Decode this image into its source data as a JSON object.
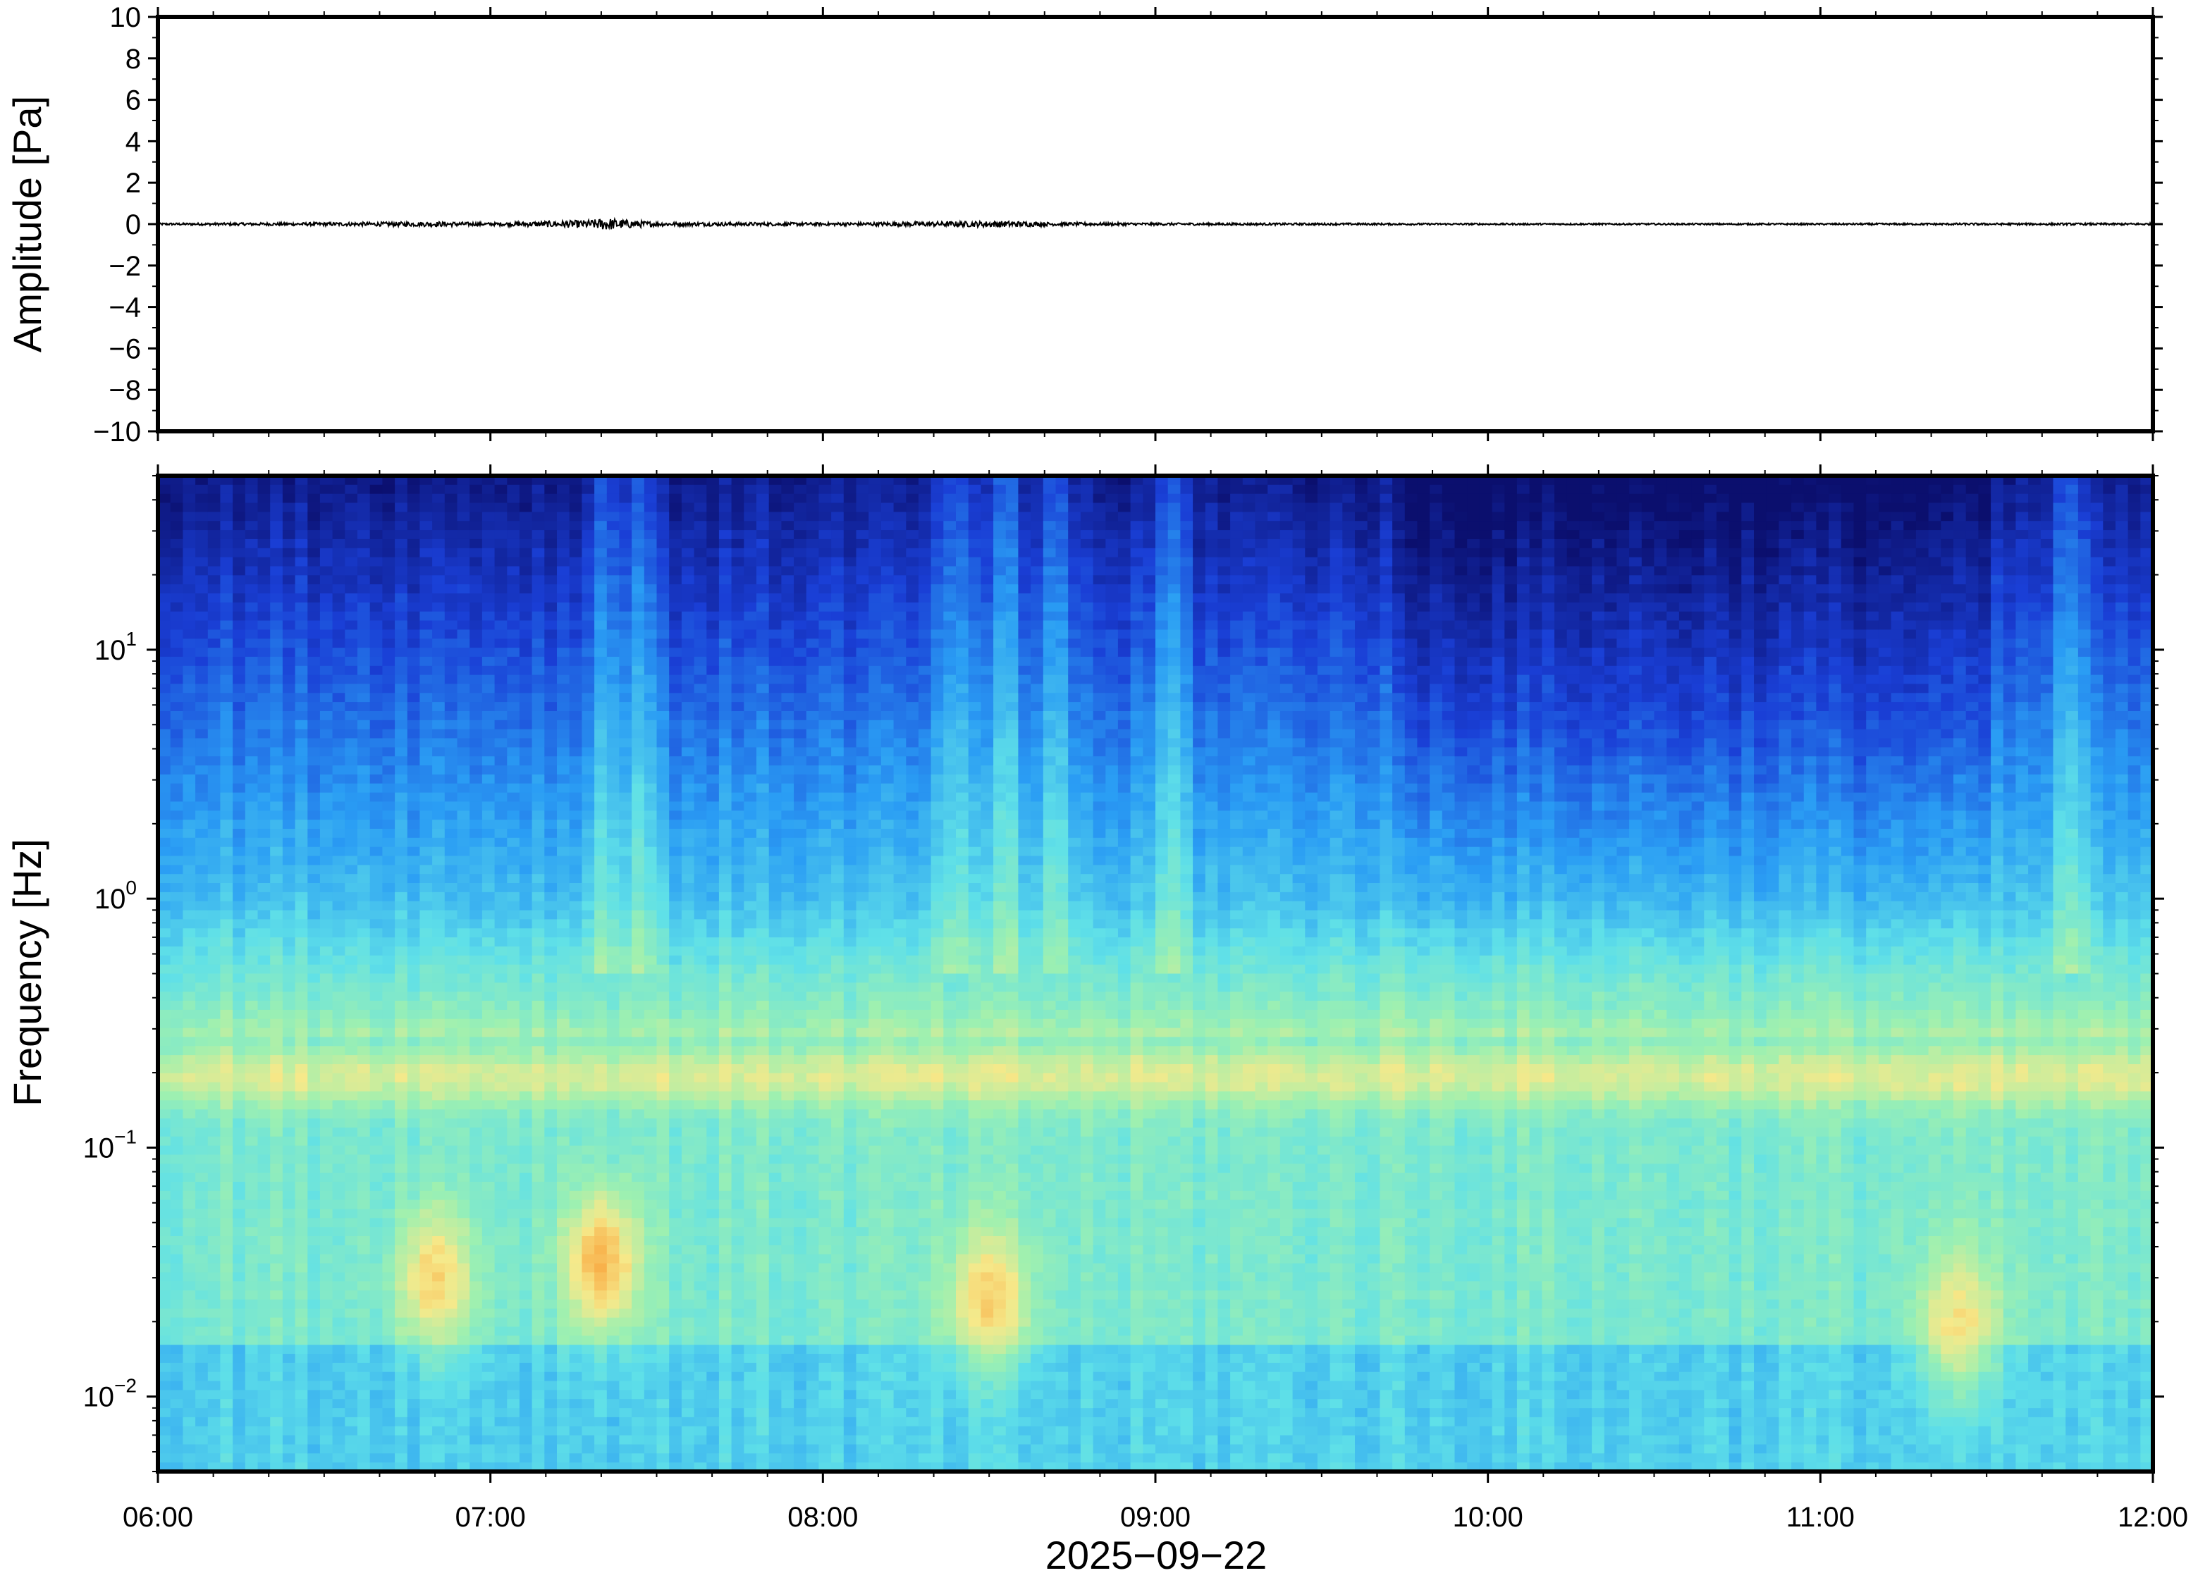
{
  "chart_data": [
    {
      "type": "line",
      "panel": "waveform",
      "title": "",
      "xlabel": "",
      "ylabel": "Amplitude [Pa]",
      "ylim": [
        -10,
        10
      ],
      "yticks": [
        10,
        8,
        6,
        4,
        2,
        0,
        -2,
        -4,
        -6,
        -8,
        -10
      ],
      "ytick_labels": [
        "10",
        "8",
        "6",
        "4",
        "2",
        "0",
        "−2",
        "−4",
        "−6",
        "−8",
        "−10"
      ],
      "xlim": [
        "06:00",
        "12:00"
      ],
      "series": [
        {
          "x_hours": [
            6.0,
            6.5,
            6.85,
            7.0,
            7.3,
            7.35,
            7.4,
            7.5,
            8.0,
            8.55,
            8.7,
            9.0,
            9.5,
            10.0,
            10.5,
            11.0,
            11.5,
            12.0
          ],
          "y": [
            0.05,
            0.08,
            0.12,
            0.07,
            0.2,
            0.3,
            0.22,
            0.1,
            0.07,
            0.15,
            0.08,
            0.06,
            0.05,
            0.04,
            0.04,
            0.04,
            0.05,
            0.05
          ],
          "color": "#000000"
        }
      ],
      "grid": false
    },
    {
      "type": "heatmap",
      "panel": "spectrogram",
      "title": "",
      "xlabel": "2025−09−22",
      "ylabel": "Frequency [Hz]",
      "yscale": "log",
      "ylim": [
        0.005,
        50
      ],
      "yticks": [
        0.01,
        0.1,
        1,
        10
      ],
      "ytick_labels": [
        {
          "base": "10",
          "exp": "−2"
        },
        {
          "base": "10",
          "exp": "−1"
        },
        {
          "base": "10",
          "exp": "0"
        },
        {
          "base": "10",
          "exp": "1"
        }
      ],
      "xlim": [
        "06:00",
        "12:00"
      ],
      "xticks": [
        "06:00",
        "07:00",
        "08:00",
        "09:00",
        "10:00",
        "11:00",
        "12:00"
      ],
      "colormap": "jet",
      "colormap_stops": [
        "#0b0f6e",
        "#1a3fd6",
        "#2a9df4",
        "#5fe0e8",
        "#9ef0b0",
        "#f6e98a",
        "#f9a23a"
      ],
      "level_range": [
        0,
        1
      ],
      "energy_band_hz": [
        0.15,
        0.25
      ],
      "hotspots": [
        {
          "time": "06:50",
          "freq_hz": 0.03,
          "level": 0.88
        },
        {
          "time": "07:20",
          "freq_hz": 0.035,
          "level": 0.95
        },
        {
          "time": "08:30",
          "freq_hz": 0.025,
          "level": 0.9
        },
        {
          "time": "11:25",
          "freq_hz": 0.02,
          "level": 0.85
        }
      ],
      "grid": false
    }
  ]
}
